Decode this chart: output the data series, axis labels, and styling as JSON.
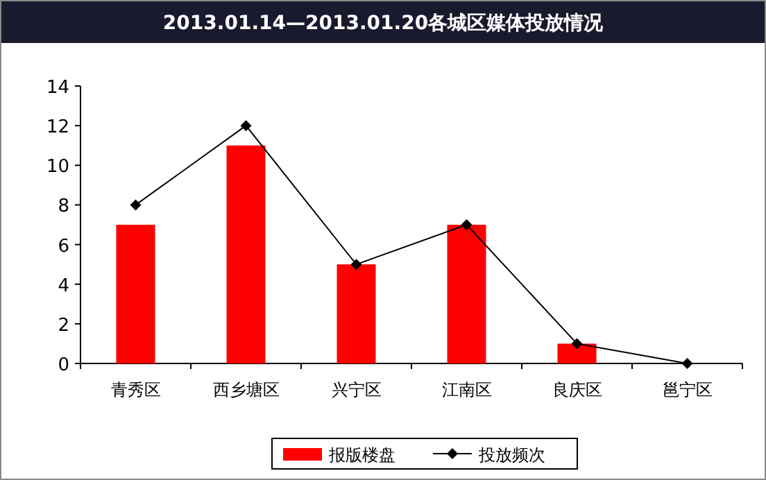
{
  "chart_data": {
    "type": "bar",
    "title": "2013.01.14—2013.01.20各城区媒体投放情况",
    "categories": [
      "青秀区",
      "西乡塘区",
      "兴宁区",
      "江南区",
      "良庆区",
      "邕宁区"
    ],
    "series": [
      {
        "name": "报版楼盘",
        "color": "#ff0000",
        "values": [
          7,
          11,
          5,
          7,
          1,
          0
        ]
      },
      {
        "name": "投放频次",
        "type": "line",
        "color": "#000000",
        "values": [
          8,
          12,
          5,
          7,
          1,
          0
        ]
      }
    ],
    "ylim": [
      0,
      14
    ],
    "yticks": [
      0,
      2,
      4,
      6,
      8,
      10,
      12,
      14
    ],
    "grid": false,
    "legend": "bottom",
    "marker": "diamond",
    "line_style": "solid"
  }
}
